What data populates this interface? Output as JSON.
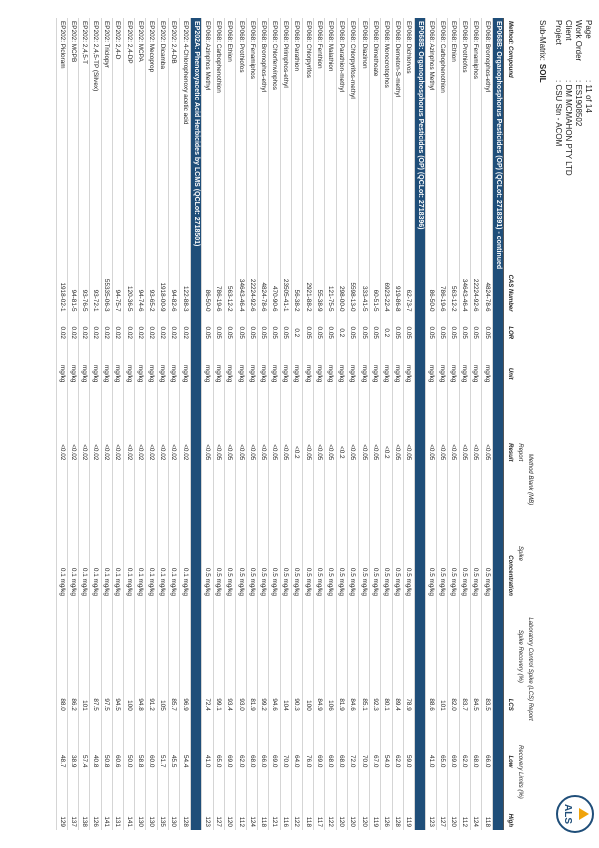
{
  "header": {
    "fields": [
      {
        "label": "Page",
        "value": ": 11 of 14"
      },
      {
        "label": "Work Order",
        "value": ": ES1908502"
      },
      {
        "label": "Client",
        "value": ": DM MCMAHON PTY LTD"
      },
      {
        "label": "Project",
        "value": ": CSU Stn - ACOM"
      }
    ],
    "logo": "ALS"
  },
  "sub_matrix": {
    "label": "Sub-Matrix:",
    "value": "SOIL"
  },
  "table": {
    "group_headers": [
      "Method Blank (MB)",
      "Laboratory Control Spike (LCS) Report",
      "Report",
      "Spike",
      "Spike Recovery (%)",
      "Recovery Limits (%)"
    ],
    "columns": [
      "Method: Compound",
      "CAS Number",
      "LOR",
      "Unit",
      "Result",
      "Concentration",
      "LCS",
      "Low",
      "High"
    ],
    "sections": [
      {
        "title": "EP068B: Organophosphorus Pesticides (OP) (QCLot: 2718391) - continued",
        "rows": [
          [
            "EP068: Bromophos-ethyl",
            "4824-78-6",
            "0.05",
            "mg/kg",
            "<0.05",
            "0.5 mg/kg",
            "83.5",
            "66.0",
            "118"
          ],
          [
            "EP068: Fenamiphos",
            "22224-92-6",
            "0.05",
            "mg/kg",
            "<0.05",
            "0.5 mg/kg",
            "84.5",
            "68.0",
            "124"
          ],
          [
            "EP068: Prothiofos",
            "34643-46-4",
            "0.05",
            "mg/kg",
            "<0.05",
            "0.5 mg/kg",
            "83.7",
            "62.0",
            "112"
          ],
          [
            "EP068: Ethion",
            "563-12-2",
            "0.05",
            "mg/kg",
            "<0.05",
            "0.5 mg/kg",
            "82.0",
            "69.0",
            "120"
          ],
          [
            "EP068: Carbophenothion",
            "786-19-6",
            "0.05",
            "mg/kg",
            "<0.05",
            "0.5 mg/kg",
            "101",
            "65.0",
            "127"
          ],
          [
            "EP068: Azinphos Methyl",
            "86-50-0",
            "0.05",
            "mg/kg",
            "<0.05",
            "0.5 mg/kg",
            "88.6",
            "41.0",
            "123"
          ]
        ]
      },
      {
        "title": "EP068B: Organophosphorus Pesticides (OP) (QCLot: 2718396)",
        "rows": [
          [
            "EP068: Dichlorvos",
            "62-73-7",
            "0.05",
            "mg/kg",
            "<0.05",
            "0.5 mg/kg",
            "78.9",
            "59.0",
            "119"
          ],
          [
            "EP068: Demeton-S-methyl",
            "919-86-8",
            "0.05",
            "mg/kg",
            "<0.05",
            "0.5 mg/kg",
            "89.4",
            "62.0",
            "128"
          ],
          [
            "EP068: Monocrotophos",
            "6923-22-4",
            "0.2",
            "mg/kg",
            "<0.2",
            "0.5 mg/kg",
            "80.1",
            "54.0",
            "126"
          ],
          [
            "EP068: Dimethoate",
            "60-51-5",
            "0.05",
            "mg/kg",
            "<0.05",
            "0.5 mg/kg",
            "92.3",
            "67.0",
            "119"
          ],
          [
            "EP068: Diazinon",
            "333-41-5",
            "0.05",
            "mg/kg",
            "<0.05",
            "0.5 mg/kg",
            "85.1",
            "70.0",
            "120"
          ],
          [
            "EP068: Chlorpyrifos-methyl",
            "5598-13-0",
            "0.05",
            "mg/kg",
            "<0.05",
            "0.5 mg/kg",
            "84.6",
            "72.0",
            "120"
          ],
          [
            "EP068: Parathion-methyl",
            "298-00-0",
            "0.2",
            "mg/kg",
            "<0.2",
            "0.5 mg/kg",
            "81.9",
            "68.0",
            "120"
          ],
          [
            "EP068: Malathion",
            "121-75-5",
            "0.05",
            "mg/kg",
            "<0.05",
            "0.5 mg/kg",
            "106",
            "68.0",
            "122"
          ],
          [
            "EP068: Fenthion",
            "55-38-9",
            "0.05",
            "mg/kg",
            "<0.05",
            "0.5 mg/kg",
            "84.9",
            "69.0",
            "117"
          ],
          [
            "EP068: Chlorpyrifos",
            "2921-88-2",
            "0.05",
            "mg/kg",
            "<0.05",
            "0.5 mg/kg",
            "100",
            "76.0",
            "118"
          ],
          [
            "EP068: Parathion",
            "56-38-2",
            "0.2",
            "mg/kg",
            "<0.2",
            "0.5 mg/kg",
            "90.3",
            "64.0",
            "122"
          ],
          [
            "EP068: Pirimphos-ethyl",
            "23505-41-1",
            "0.05",
            "mg/kg",
            "<0.05",
            "0.5 mg/kg",
            "104",
            "70.0",
            "116"
          ],
          [
            "EP068: Chlorfenvinphos",
            "470-90-6",
            "0.05",
            "mg/kg",
            "<0.05",
            "0.5 mg/kg",
            "94.6",
            "69.0",
            "121"
          ],
          [
            "EP068: Bromophos-ethyl",
            "4824-78-6",
            "0.05",
            "mg/kg",
            "<0.05",
            "0.5 mg/kg",
            "99.2",
            "66.0",
            "118"
          ],
          [
            "EP068: Fenamiphos",
            "22224-92-6",
            "0.05",
            "mg/kg",
            "<0.05",
            "0.5 mg/kg",
            "81.9",
            "68.0",
            "124"
          ],
          [
            "EP068: Prothiofos",
            "34643-46-4",
            "0.05",
            "mg/kg",
            "<0.05",
            "0.5 mg/kg",
            "93.0",
            "62.0",
            "112"
          ],
          [
            "EP068: Ethion",
            "563-12-2",
            "0.05",
            "mg/kg",
            "<0.05",
            "0.5 mg/kg",
            "93.4",
            "69.0",
            "120"
          ],
          [
            "EP068: Carbophenothion",
            "786-19-6",
            "0.05",
            "mg/kg",
            "<0.05",
            "0.5 mg/kg",
            "99.1",
            "65.0",
            "127"
          ],
          [
            "EP068: Azinphos Methyl",
            "86-50-0",
            "0.05",
            "mg/kg",
            "<0.05",
            "0.5 mg/kg",
            "72.4",
            "41.0",
            "123"
          ]
        ]
      },
      {
        "title": "EP202A: Phenoxyacetic Acid Herbicides by LCMS (QCLot: 2718501)",
        "rows": [
          [
            "EP202: 4-Chlorophenoxy acetic acid",
            "122-88-3",
            "0.02",
            "mg/kg",
            "<0.02",
            "0.1 mg/kg",
            "96.9",
            "54.4",
            "128"
          ],
          [
            "EP202: 2,4-DB",
            "94-82-6",
            "0.02",
            "mg/kg",
            "<0.02",
            "0.1 mg/kg",
            "85.7",
            "45.5",
            "130"
          ],
          [
            "EP202: Dicamba",
            "1918-00-9",
            "0.02",
            "mg/kg",
            "<0.02",
            "0.1 mg/kg",
            "105",
            "51.7",
            "135"
          ],
          [
            "EP202: Mecoprop",
            "93-65-2",
            "0.02",
            "mg/kg",
            "<0.02",
            "0.1 mg/kg",
            "91.2",
            "60.0",
            "130"
          ],
          [
            "EP202: MCPA",
            "94-74-6",
            "0.02",
            "mg/kg",
            "<0.02",
            "0.1 mg/kg",
            "94.8",
            "58.8",
            "130"
          ],
          [
            "EP202: 2,4-DP",
            "120-36-5",
            "0.02",
            "mg/kg",
            "<0.02",
            "0.1 mg/kg",
            "100",
            "50.0",
            "141"
          ],
          [
            "EP202: 2,4-D",
            "94-75-7",
            "0.02",
            "mg/kg",
            "<0.02",
            "0.1 mg/kg",
            "94.5",
            "60.6",
            "131"
          ],
          [
            "EP202: Triclopyr",
            "55335-06-3",
            "0.02",
            "mg/kg",
            "<0.02",
            "0.1 mg/kg",
            "97.5",
            "50.8",
            "141"
          ],
          [
            "EP202: 2,4,5-TP (Silvex)",
            "93-72-1",
            "0.02",
            "mg/kg",
            "<0.02",
            "0.1 mg/kg",
            "87.5",
            "40.8",
            "126"
          ],
          [
            "EP202: 2,4,5-T",
            "93-76-5",
            "0.02",
            "mg/kg",
            "<0.02",
            "0.1 mg/kg",
            "101",
            "57.4",
            "138"
          ],
          [
            "EP202: MCPB",
            "94-81-5",
            "0.02",
            "mg/kg",
            "<0.02",
            "0.1 mg/kg",
            "86.2",
            "38.9",
            "137"
          ],
          [
            "EP202: Picloram",
            "1918-02-1",
            "0.02",
            "mg/kg",
            "<0.02",
            "0.1 mg/kg",
            "88.0",
            "48.7",
            "129"
          ]
        ]
      }
    ]
  }
}
